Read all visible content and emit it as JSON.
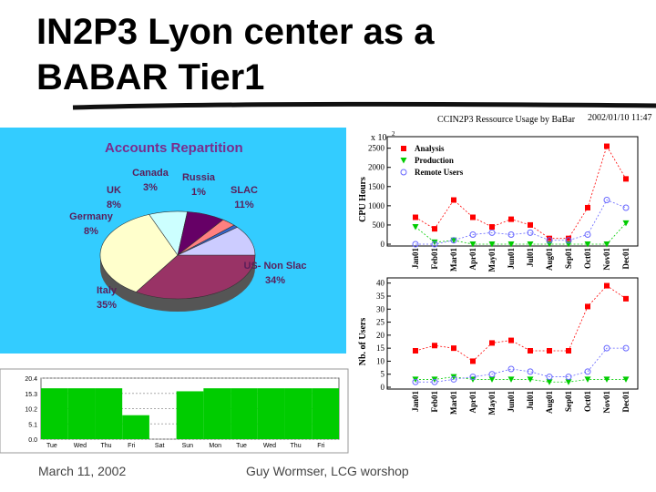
{
  "title_lines": [
    "IN2P3 Lyon center as a",
    "BABAR Tier1"
  ],
  "footer": {
    "date": "March 11, 2002",
    "author": "Guy Wormser, LCG worshop"
  },
  "chart_data": [
    {
      "type": "pie",
      "title": "Accounts Repartition",
      "categories": [
        "US- Non Slac",
        "Italy",
        "Germany",
        "UK",
        "Canada",
        "Russia",
        "SLAC"
      ],
      "values": [
        34,
        35,
        8,
        8,
        3,
        1,
        11
      ],
      "value_labels": [
        "34%",
        "35%",
        "8%",
        "8%",
        "3%",
        "1%",
        "11%"
      ],
      "colors": [
        "#993366",
        "#ffffcc",
        "#ccffff",
        "#660066",
        "#ff8080",
        "#3366cc",
        "#ccccff"
      ]
    },
    {
      "type": "line",
      "title": "CCIN2P3 Ressource Usage by BaBar",
      "timestamp": "2002/01/10   11:47",
      "y_label": "CPU Hours",
      "scale_label": "x 10",
      "scale_exp": "2",
      "categories": [
        "Jan01",
        "Feb01",
        "Mar01",
        "Apr01",
        "May01",
        "Jun01",
        "Jul01",
        "Aug01",
        "Sep01",
        "Oct01",
        "Nov01",
        "Dec01"
      ],
      "series": [
        {
          "name": "Analysis",
          "color": "#ff0000",
          "marker": "square",
          "values": [
            700,
            400,
            1150,
            700,
            450,
            650,
            500,
            150,
            150,
            950,
            2550,
            1700
          ]
        },
        {
          "name": "Production",
          "color": "#00cc00",
          "marker": "triangle",
          "values": [
            450,
            50,
            100,
            0,
            0,
            0,
            0,
            0,
            0,
            0,
            0,
            550
          ]
        },
        {
          "name": "Remote Users",
          "color": "#6666ff",
          "marker": "circle",
          "values": [
            0,
            0,
            100,
            250,
            300,
            250,
            300,
            100,
            100,
            250,
            1150,
            950
          ]
        }
      ],
      "ylim": [
        0,
        2800
      ],
      "yticks": [
        0,
        500,
        1000,
        1500,
        2000,
        2500
      ],
      "legend": "upper-left"
    },
    {
      "type": "line",
      "y_label": "Nb. of Users",
      "categories": [
        "Jan01",
        "Feb01",
        "Mar01",
        "Apr01",
        "May01",
        "Jun01",
        "Jul01",
        "Aug01",
        "Sep01",
        "Oct01",
        "Nov01",
        "Dec01"
      ],
      "series": [
        {
          "name": "Analysis",
          "color": "#ff0000",
          "marker": "square",
          "values": [
            14,
            16,
            15,
            10,
            17,
            18,
            14,
            14,
            14,
            31,
            39,
            34
          ]
        },
        {
          "name": "Production",
          "color": "#00cc00",
          "marker": "triangle",
          "values": [
            3,
            3,
            4,
            3,
            3,
            3,
            3,
            2,
            2,
            3,
            3,
            3
          ]
        },
        {
          "name": "Remote Users",
          "color": "#6666ff",
          "marker": "circle",
          "values": [
            2,
            2,
            3,
            4,
            5,
            7,
            6,
            4,
            4,
            6,
            15,
            15
          ]
        }
      ],
      "ylim": [
        0,
        42
      ],
      "yticks": [
        0,
        5,
        10,
        15,
        20,
        25,
        30,
        35,
        40
      ]
    },
    {
      "type": "bar",
      "color": "#00cc00",
      "categories": [
        "Tue",
        "Wed",
        "Thu",
        "Fri",
        "Sat",
        "Sun",
        "Mon",
        "Tue",
        "Wed",
        "Thu",
        "Fri"
      ],
      "values": [
        17,
        17,
        17,
        8,
        0,
        16,
        17,
        17,
        17,
        17,
        17
      ],
      "ylim": [
        0,
        20.4
      ],
      "yticks": [
        {
          "value": 0,
          "label": "0.0"
        },
        5.1,
        10.2,
        15.3,
        20.4
      ],
      "grid": true
    }
  ]
}
